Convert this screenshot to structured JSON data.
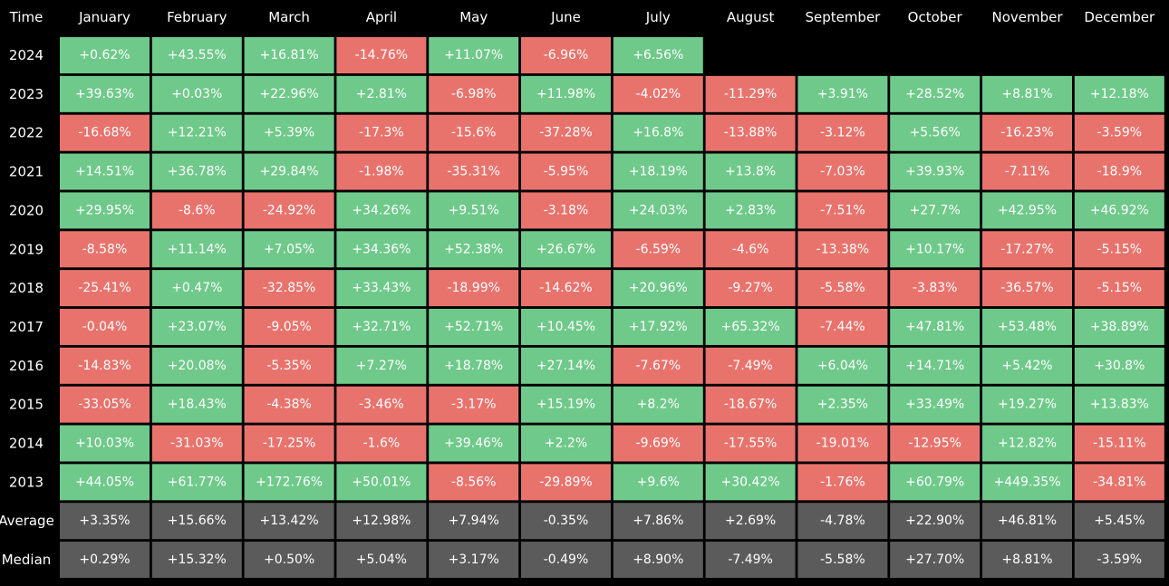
{
  "chart_data": {
    "type": "heatmap",
    "title": "",
    "corner_label": "Time",
    "columns": [
      "January",
      "February",
      "March",
      "April",
      "May",
      "June",
      "July",
      "August",
      "September",
      "October",
      "November",
      "December"
    ],
    "colors": {
      "positive": "#6fc98a",
      "negative": "#e8736d",
      "summary": "#5b5b5b",
      "background": "#000000",
      "header_text": "#ffffff"
    },
    "rows": [
      {
        "label": "2024",
        "type": "year",
        "cells": [
          "+0.62%",
          "+43.55%",
          "+16.81%",
          "-14.76%",
          "+11.07%",
          "-6.96%",
          "+6.56%",
          null,
          null,
          null,
          null,
          null
        ]
      },
      {
        "label": "2023",
        "type": "year",
        "cells": [
          "+39.63%",
          "+0.03%",
          "+22.96%",
          "+2.81%",
          "-6.98%",
          "+11.98%",
          "-4.02%",
          "-11.29%",
          "+3.91%",
          "+28.52%",
          "+8.81%",
          "+12.18%"
        ]
      },
      {
        "label": "2022",
        "type": "year",
        "cells": [
          "-16.68%",
          "+12.21%",
          "+5.39%",
          "-17.3%",
          "-15.6%",
          "-37.28%",
          "+16.8%",
          "-13.88%",
          "-3.12%",
          "+5.56%",
          "-16.23%",
          "-3.59%"
        ]
      },
      {
        "label": "2021",
        "type": "year",
        "cells": [
          "+14.51%",
          "+36.78%",
          "+29.84%",
          "-1.98%",
          "-35.31%",
          "-5.95%",
          "+18.19%",
          "+13.8%",
          "-7.03%",
          "+39.93%",
          "-7.11%",
          "-18.9%"
        ]
      },
      {
        "label": "2020",
        "type": "year",
        "cells": [
          "+29.95%",
          "-8.6%",
          "-24.92%",
          "+34.26%",
          "+9.51%",
          "-3.18%",
          "+24.03%",
          "+2.83%",
          "-7.51%",
          "+27.7%",
          "+42.95%",
          "+46.92%"
        ]
      },
      {
        "label": "2019",
        "type": "year",
        "cells": [
          "-8.58%",
          "+11.14%",
          "+7.05%",
          "+34.36%",
          "+52.38%",
          "+26.67%",
          "-6.59%",
          "-4.6%",
          "-13.38%",
          "+10.17%",
          "-17.27%",
          "-5.15%"
        ]
      },
      {
        "label": "2018",
        "type": "year",
        "cells": [
          "-25.41%",
          "+0.47%",
          "-32.85%",
          "+33.43%",
          "-18.99%",
          "-14.62%",
          "+20.96%",
          "-9.27%",
          "-5.58%",
          "-3.83%",
          "-36.57%",
          "-5.15%"
        ]
      },
      {
        "label": "2017",
        "type": "year",
        "cells": [
          "-0.04%",
          "+23.07%",
          "-9.05%",
          "+32.71%",
          "+52.71%",
          "+10.45%",
          "+17.92%",
          "+65.32%",
          "-7.44%",
          "+47.81%",
          "+53.48%",
          "+38.89%"
        ]
      },
      {
        "label": "2016",
        "type": "year",
        "cells": [
          "-14.83%",
          "+20.08%",
          "-5.35%",
          "+7.27%",
          "+18.78%",
          "+27.14%",
          "-7.67%",
          "-7.49%",
          "+6.04%",
          "+14.71%",
          "+5.42%",
          "+30.8%"
        ]
      },
      {
        "label": "2015",
        "type": "year",
        "cells": [
          "-33.05%",
          "+18.43%",
          "-4.38%",
          "-3.46%",
          "-3.17%",
          "+15.19%",
          "+8.2%",
          "-18.67%",
          "+2.35%",
          "+33.49%",
          "+19.27%",
          "+13.83%"
        ]
      },
      {
        "label": "2014",
        "type": "year",
        "cells": [
          "+10.03%",
          "-31.03%",
          "-17.25%",
          "-1.6%",
          "+39.46%",
          "+2.2%",
          "-9.69%",
          "-17.55%",
          "-19.01%",
          "-12.95%",
          "+12.82%",
          "-15.11%"
        ]
      },
      {
        "label": "2013",
        "type": "year",
        "cells": [
          "+44.05%",
          "+61.77%",
          "+172.76%",
          "+50.01%",
          "-8.56%",
          "-29.89%",
          "+9.6%",
          "+30.42%",
          "-1.76%",
          "+60.79%",
          "+449.35%",
          "-34.81%"
        ]
      },
      {
        "label": "Average",
        "type": "summary",
        "cells": [
          "+3.35%",
          "+15.66%",
          "+13.42%",
          "+12.98%",
          "+7.94%",
          "-0.35%",
          "+7.86%",
          "+2.69%",
          "-4.78%",
          "+22.90%",
          "+46.81%",
          "+5.45%"
        ]
      },
      {
        "label": "Median",
        "type": "summary",
        "cells": [
          "+0.29%",
          "+15.32%",
          "+0.50%",
          "+5.04%",
          "+3.17%",
          "-0.49%",
          "+8.90%",
          "-7.49%",
          "-5.58%",
          "+27.70%",
          "+8.81%",
          "-3.59%"
        ]
      }
    ]
  }
}
